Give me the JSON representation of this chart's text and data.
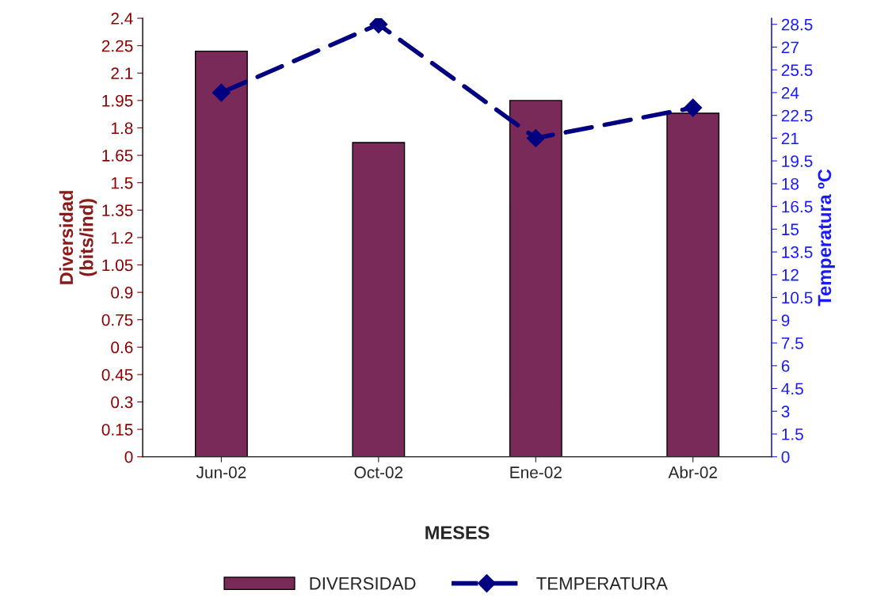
{
  "chart_data": {
    "type": "bar",
    "xlabel": "MESES",
    "ylabel": "Diversidad\n(bits/ind)",
    "y2label": "Temperatura ºC",
    "categories": [
      "Jun-02",
      "Oct-02",
      "Ene-02",
      "Abr-02"
    ],
    "series": [
      {
        "name": "DIVERSIDAD",
        "color": "#7a2a58",
        "values": [
          2.22,
          1.72,
          1.95,
          1.88
        ]
      },
      {
        "name": "TEMPERATURA",
        "type": "line",
        "axis": "y2",
        "color": "#000080",
        "marker": "diamond",
        "line_style": "dashed",
        "values": [
          24,
          28.5,
          21,
          23
        ]
      }
    ],
    "ylim": [
      0,
      2.4
    ],
    "yticks": [
      0,
      0.15,
      0.3,
      0.45,
      0.6,
      0.75,
      0.9,
      1.05,
      1.2,
      1.35,
      1.5,
      1.65,
      1.8,
      1.95,
      2.1,
      2.25,
      2.4
    ],
    "y2lim": [
      0,
      28.9
    ],
    "y2ticks": [
      0,
      1.5,
      3,
      4.5,
      6,
      7.5,
      9,
      10.5,
      12,
      13.5,
      15,
      16.5,
      18,
      19.5,
      21,
      22.5,
      24,
      25.5,
      27,
      28.5
    ],
    "grid": false,
    "legend": "bottom"
  }
}
